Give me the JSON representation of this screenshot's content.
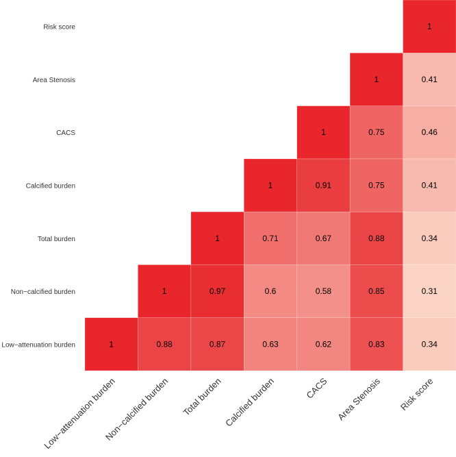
{
  "chart_data": {
    "type": "heatmap",
    "title": "",
    "xlabel": "",
    "ylabel": "",
    "variables": [
      "Low−attenuation burden",
      "Non−calcified burden",
      "Total burden",
      "Calcified burden",
      "CACS",
      "Area Stenosis",
      "Risk score"
    ],
    "cells": [
      {
        "row": "Low−attenuation burden",
        "col": "Low−attenuation burden",
        "value": 1,
        "label": "1"
      },
      {
        "row": "Low−attenuation burden",
        "col": "Non−calcified burden",
        "value": 0.88,
        "label": "0.88"
      },
      {
        "row": "Low−attenuation burden",
        "col": "Total burden",
        "value": 0.87,
        "label": "0.87"
      },
      {
        "row": "Low−attenuation burden",
        "col": "Calcified burden",
        "value": 0.63,
        "label": "0.63"
      },
      {
        "row": "Low−attenuation burden",
        "col": "CACS",
        "value": 0.62,
        "label": "0.62"
      },
      {
        "row": "Low−attenuation burden",
        "col": "Area Stenosis",
        "value": 0.83,
        "label": "0.83"
      },
      {
        "row": "Low−attenuation burden",
        "col": "Risk score",
        "value": 0.34,
        "label": "0.34"
      },
      {
        "row": "Non−calcified burden",
        "col": "Non−calcified burden",
        "value": 1,
        "label": "1"
      },
      {
        "row": "Non−calcified burden",
        "col": "Total burden",
        "value": 0.97,
        "label": "0.97"
      },
      {
        "row": "Non−calcified burden",
        "col": "Calcified burden",
        "value": 0.6,
        "label": "0.6"
      },
      {
        "row": "Non−calcified burden",
        "col": "CACS",
        "value": 0.58,
        "label": "0.58"
      },
      {
        "row": "Non−calcified burden",
        "col": "Area Stenosis",
        "value": 0.85,
        "label": "0.85"
      },
      {
        "row": "Non−calcified burden",
        "col": "Risk score",
        "value": 0.31,
        "label": "0.31"
      },
      {
        "row": "Total burden",
        "col": "Total burden",
        "value": 1,
        "label": "1"
      },
      {
        "row": "Total burden",
        "col": "Calcified burden",
        "value": 0.71,
        "label": "0.71"
      },
      {
        "row": "Total burden",
        "col": "CACS",
        "value": 0.67,
        "label": "0.67"
      },
      {
        "row": "Total burden",
        "col": "Area Stenosis",
        "value": 0.88,
        "label": "0.88"
      },
      {
        "row": "Total burden",
        "col": "Risk score",
        "value": 0.34,
        "label": "0.34"
      },
      {
        "row": "Calcified burden",
        "col": "Calcified burden",
        "value": 1,
        "label": "1"
      },
      {
        "row": "Calcified burden",
        "col": "CACS",
        "value": 0.91,
        "label": "0.91"
      },
      {
        "row": "Calcified burden",
        "col": "Area Stenosis",
        "value": 0.75,
        "label": "0.75"
      },
      {
        "row": "Calcified burden",
        "col": "Risk score",
        "value": 0.41,
        "label": "0.41"
      },
      {
        "row": "CACS",
        "col": "CACS",
        "value": 1,
        "label": "1"
      },
      {
        "row": "CACS",
        "col": "Area Stenosis",
        "value": 0.75,
        "label": "0.75"
      },
      {
        "row": "CACS",
        "col": "Risk score",
        "value": 0.46,
        "label": "0.46"
      },
      {
        "row": "Area Stenosis",
        "col": "Area Stenosis",
        "value": 1,
        "label": "1"
      },
      {
        "row": "Area Stenosis",
        "col": "Risk score",
        "value": 0.41,
        "label": "0.41"
      },
      {
        "row": "Risk score",
        "col": "Risk score",
        "value": 1,
        "label": "1"
      }
    ],
    "color_scale": {
      "low": "#fbd6c7",
      "high": "#e8262b"
    },
    "grid": false,
    "legend": "none"
  }
}
